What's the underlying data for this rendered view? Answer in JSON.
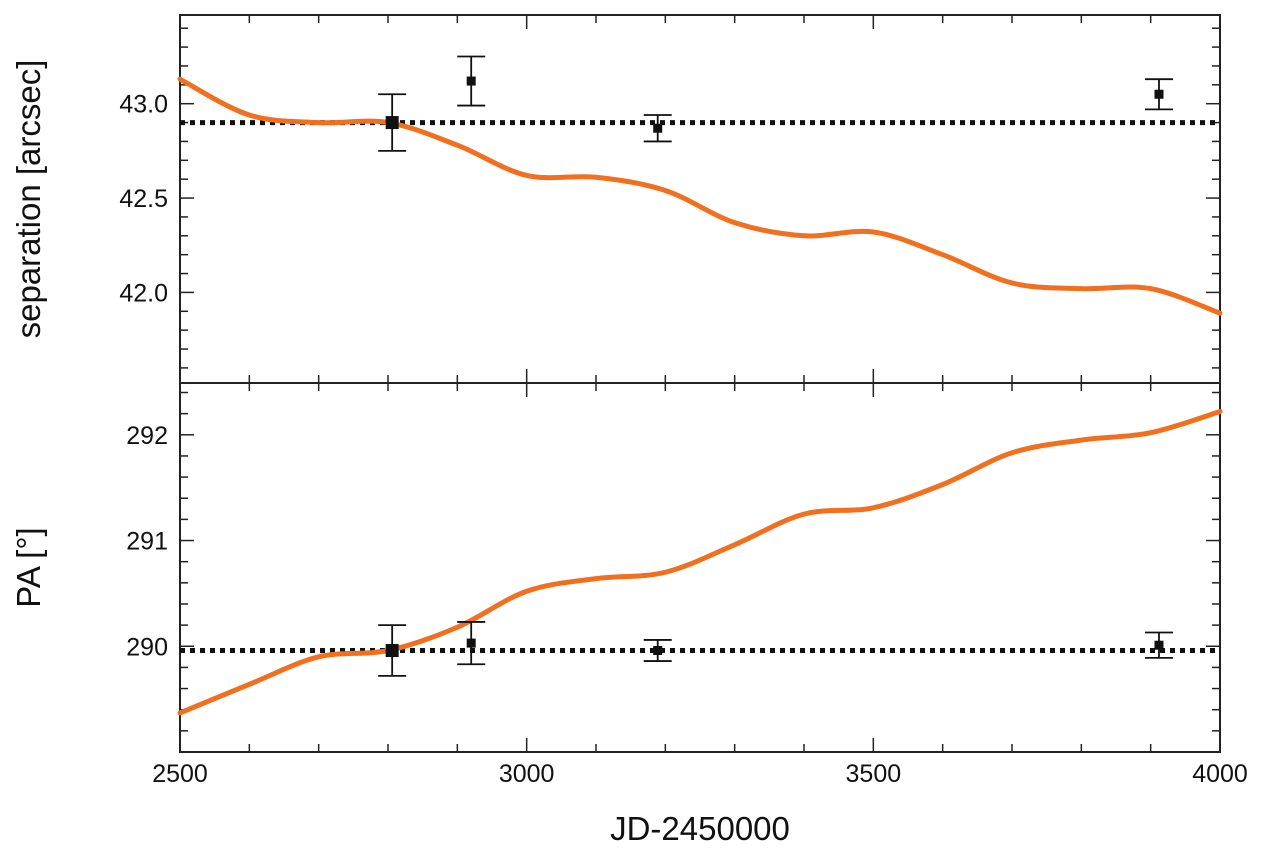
{
  "chart_data": [
    {
      "type": "line",
      "panel": "top",
      "ylabel": "separation [arcsec]",
      "xlabel": "JD-2450000",
      "xlim": [
        2500,
        4000
      ],
      "ylim": [
        41.52,
        43.47
      ],
      "x_ticks": [
        "2500",
        "3000",
        "3500",
        "4000"
      ],
      "y_ticks": [
        "42.0",
        "42.5",
        "43.0"
      ],
      "reference_line": 42.9,
      "model_curve": {
        "color": "#f07020",
        "x": [
          2500,
          2600,
          2700,
          2800,
          2900,
          3000,
          3100,
          3200,
          3300,
          3400,
          3500,
          3600,
          3700,
          3800,
          3900,
          4000
        ],
        "y": [
          43.13,
          42.94,
          42.9,
          42.9,
          42.78,
          42.62,
          42.61,
          42.54,
          42.37,
          42.3,
          42.32,
          42.2,
          42.05,
          42.02,
          42.02,
          41.89
        ]
      },
      "points": [
        {
          "x": 2806,
          "y": 42.9,
          "err": 0.15
        },
        {
          "x": 2920,
          "y": 43.12,
          "err": 0.13
        },
        {
          "x": 3189,
          "y": 42.87,
          "err": 0.07
        },
        {
          "x": 3912,
          "y": 43.05,
          "err": 0.08
        }
      ]
    },
    {
      "type": "line",
      "panel": "bottom",
      "ylabel": "PA [°]",
      "xlabel": "JD-2450000",
      "xlim": [
        2500,
        4000
      ],
      "ylim": [
        289.0,
        292.49
      ],
      "x_ticks": [
        "2500",
        "3000",
        "3500",
        "4000"
      ],
      "y_ticks": [
        "290",
        "291",
        "292"
      ],
      "reference_line": 289.96,
      "model_curve": {
        "color": "#f07020",
        "x": [
          2500,
          2600,
          2700,
          2800,
          2900,
          3000,
          3100,
          3200,
          3300,
          3400,
          3500,
          3600,
          3700,
          3800,
          3900,
          4000
        ],
        "y": [
          289.37,
          289.64,
          289.9,
          289.96,
          290.18,
          290.52,
          290.64,
          290.7,
          290.96,
          291.25,
          291.31,
          291.53,
          291.83,
          291.95,
          292.02,
          292.22
        ]
      },
      "points": [
        {
          "x": 2806,
          "y": 289.96,
          "err": 0.24
        },
        {
          "x": 2920,
          "y": 290.03,
          "err": 0.2
        },
        {
          "x": 3189,
          "y": 289.96,
          "err": 0.1
        },
        {
          "x": 3912,
          "y": 290.01,
          "err": 0.12
        }
      ]
    }
  ]
}
